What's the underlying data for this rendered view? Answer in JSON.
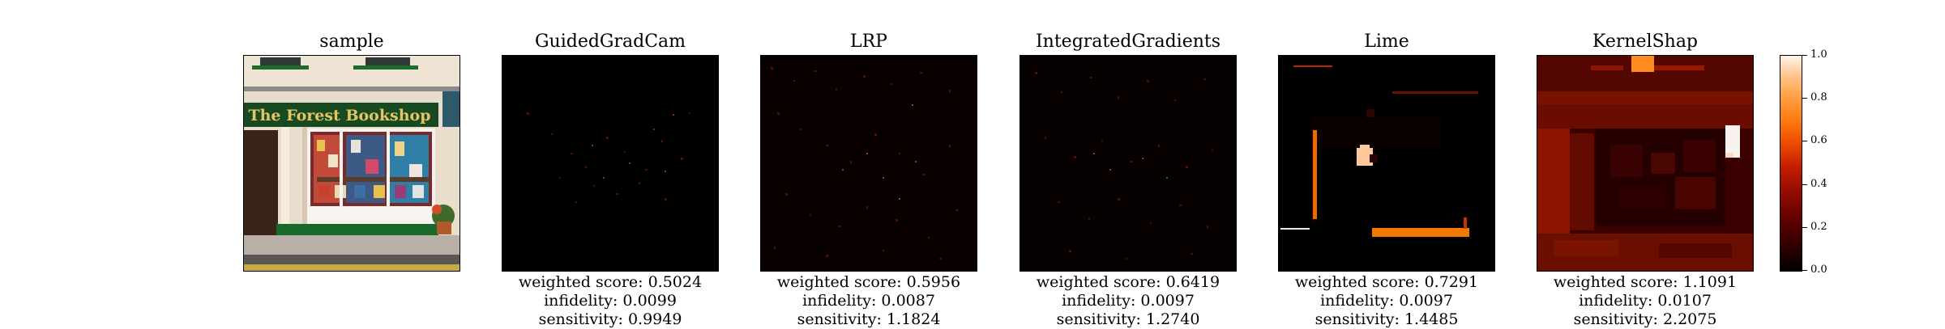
{
  "panels": [
    {
      "title": "sample",
      "metrics": null,
      "shop_sign": "The Forest Bookshop"
    },
    {
      "title": "GuidedGradCam",
      "metrics": {
        "weighted": "weighted score: 0.5024",
        "infidelity": "infidelity: 0.0099",
        "sensitivity": "sensitivity: 0.9949"
      }
    },
    {
      "title": "LRP",
      "metrics": {
        "weighted": "weighted score: 0.5956",
        "infidelity": "infidelity: 0.0087",
        "sensitivity": "sensitivity: 1.1824"
      }
    },
    {
      "title": "IntegratedGradients",
      "metrics": {
        "weighted": "weighted score: 0.6419",
        "infidelity": "infidelity: 0.0097",
        "sensitivity": "sensitivity: 1.2740"
      }
    },
    {
      "title": "Lime",
      "metrics": {
        "weighted": "weighted score: 0.7291",
        "infidelity": "infidelity: 0.0097",
        "sensitivity": "sensitivity: 1.4485"
      }
    },
    {
      "title": "KernelShap",
      "metrics": {
        "weighted": "weighted score: 1.1091",
        "infidelity": "infidelity: 0.0107",
        "sensitivity": "sensitivity: 2.2075"
      }
    }
  ],
  "colorbar": {
    "ticks": [
      "0.0",
      "0.2",
      "0.4",
      "0.6",
      "0.8",
      "1.0"
    ],
    "colormap": "gist_heat",
    "range": [
      0.0,
      1.0
    ]
  }
}
